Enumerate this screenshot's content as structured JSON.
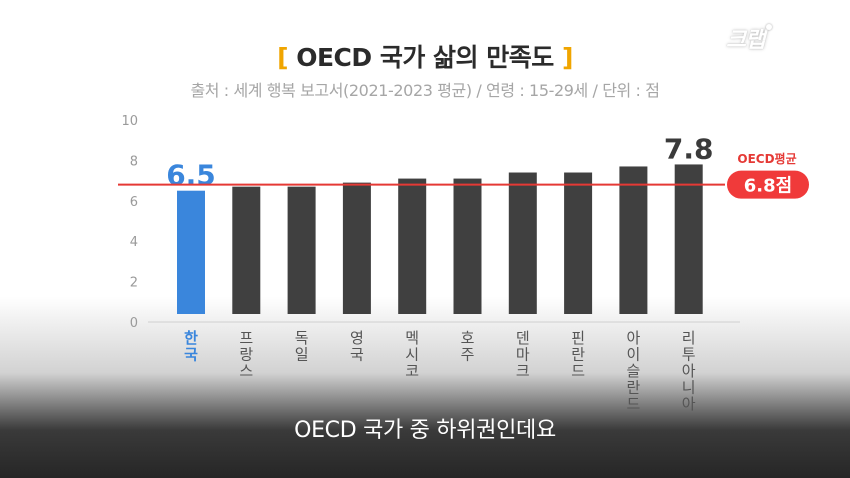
{
  "title_text": "OECD 국가 삶의 만족도",
  "bracket_open": "[",
  "bracket_close": "]",
  "subtitle": "출처 : 세계 행복 보고서(2021-2023 평균) / 연령 : 15-29세 / 단위 : 점",
  "logo": "크랩",
  "caption": "OECD 국가 중 하위권인데요",
  "colors": {
    "highlight_bar": "#3a86dc",
    "bar": "#404040",
    "average_line": "#e53935",
    "title_bracket": "#f0a500"
  },
  "chart_data": {
    "type": "bar",
    "categories": [
      "한국",
      "프랑스",
      "독일",
      "영국",
      "멕시코",
      "호주",
      "덴마크",
      "핀란드",
      "아이슬란드",
      "리투아니아"
    ],
    "values": [
      6.5,
      6.7,
      6.7,
      6.9,
      7.1,
      7.1,
      7.4,
      7.4,
      7.7,
      7.8
    ],
    "highlight_index": 0,
    "ylim": [
      0,
      10
    ],
    "yticks": [
      0,
      2,
      4,
      6,
      8,
      10
    ],
    "grid": false,
    "data_labels": [
      {
        "category": "한국",
        "text": "6.5"
      },
      {
        "category": "리투아니아",
        "text": "7.8"
      }
    ],
    "reference_line": {
      "value": 6.8,
      "label_top": "OECD평균",
      "label_value": "6.8점"
    }
  }
}
